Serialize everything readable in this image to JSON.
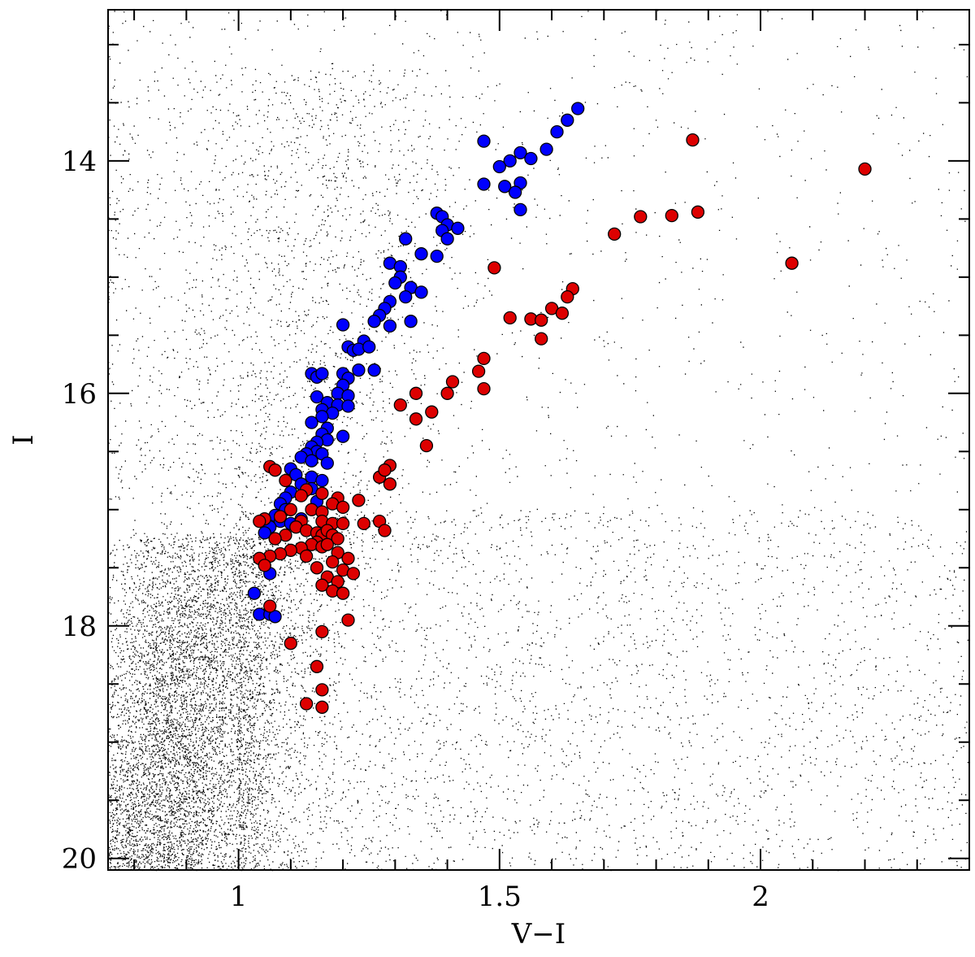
{
  "chart_data": {
    "type": "scatter",
    "title": "",
    "xlabel": "V−I",
    "ylabel": "I",
    "xlim": [
      0.75,
      2.4
    ],
    "ylim": [
      20.1,
      12.7
    ],
    "y_inverted": true,
    "grid": false,
    "legend": "none",
    "x_ticks": [
      {
        "value": 1,
        "label": "1"
      },
      {
        "value": 1.5,
        "label": "1.5"
      },
      {
        "value": 2,
        "label": "2"
      }
    ],
    "y_ticks": [
      {
        "value": 14,
        "label": "14"
      },
      {
        "value": 16,
        "label": "16"
      },
      {
        "value": 18,
        "label": "18"
      },
      {
        "value": 20,
        "label": "20"
      }
    ],
    "background_field": {
      "description_color": "#000000",
      "marker": "dot",
      "components": [
        {
          "name": "main-sequence",
          "x_center": 0.9,
          "x_spread": 0.1,
          "y_from": 17.2,
          "y_to": 20.1,
          "n": 7000
        },
        {
          "name": "red-giant-branch-field",
          "x_center": 1.1,
          "x_spread": 0.15,
          "y_from": 13.2,
          "y_to": 17.5,
          "n": 1800
        },
        {
          "name": "faint-red-field",
          "x_min": 1.0,
          "x_max": 2.4,
          "y_from": 17.0,
          "y_to": 20.1,
          "n": 3500
        },
        {
          "name": "bright-field",
          "x_min": 0.75,
          "x_max": 2.4,
          "y_from": 12.7,
          "y_to": 17.0,
          "n": 1200
        }
      ]
    },
    "series": [
      {
        "color": "#0000ff",
        "marker": "circle",
        "points": [
          [
            1.65,
            13.55
          ],
          [
            1.63,
            13.65
          ],
          [
            1.61,
            13.75
          ],
          [
            1.47,
            13.83
          ],
          [
            1.59,
            13.9
          ],
          [
            1.54,
            13.93
          ],
          [
            1.52,
            14.0
          ],
          [
            1.56,
            13.98
          ],
          [
            1.5,
            14.05
          ],
          [
            1.51,
            14.22
          ],
          [
            1.54,
            14.19
          ],
          [
            1.47,
            14.2
          ],
          [
            1.53,
            14.27
          ],
          [
            1.54,
            14.42
          ],
          [
            1.38,
            14.45
          ],
          [
            1.39,
            14.48
          ],
          [
            1.4,
            14.55
          ],
          [
            1.42,
            14.58
          ],
          [
            1.39,
            14.6
          ],
          [
            1.4,
            14.67
          ],
          [
            1.32,
            14.67
          ],
          [
            1.35,
            14.8
          ],
          [
            1.38,
            14.82
          ],
          [
            1.29,
            14.88
          ],
          [
            1.31,
            14.91
          ],
          [
            1.31,
            15.0
          ],
          [
            1.3,
            15.05
          ],
          [
            1.33,
            15.09
          ],
          [
            1.35,
            15.13
          ],
          [
            1.32,
            15.17
          ],
          [
            1.29,
            15.21
          ],
          [
            1.28,
            15.27
          ],
          [
            1.27,
            15.33
          ],
          [
            1.26,
            15.38
          ],
          [
            1.29,
            15.42
          ],
          [
            1.33,
            15.38
          ],
          [
            1.2,
            15.41
          ],
          [
            1.24,
            15.55
          ],
          [
            1.21,
            15.6
          ],
          [
            1.22,
            15.63
          ],
          [
            1.23,
            15.62
          ],
          [
            1.25,
            15.6
          ],
          [
            1.23,
            15.8
          ],
          [
            1.26,
            15.8
          ],
          [
            1.2,
            15.83
          ],
          [
            1.21,
            15.87
          ],
          [
            1.14,
            15.83
          ],
          [
            1.15,
            15.86
          ],
          [
            1.16,
            15.83
          ],
          [
            1.2,
            15.93
          ],
          [
            1.19,
            16.0
          ],
          [
            1.21,
            16.02
          ],
          [
            1.15,
            16.03
          ],
          [
            1.17,
            16.08
          ],
          [
            1.19,
            16.1
          ],
          [
            1.21,
            16.11
          ],
          [
            1.16,
            16.14
          ],
          [
            1.18,
            16.17
          ],
          [
            1.16,
            16.2
          ],
          [
            1.14,
            16.25
          ],
          [
            1.17,
            16.3
          ],
          [
            1.2,
            16.37
          ],
          [
            1.16,
            16.35
          ],
          [
            1.17,
            16.4
          ],
          [
            1.15,
            16.42
          ],
          [
            1.14,
            16.46
          ],
          [
            1.15,
            16.5
          ],
          [
            1.16,
            16.52
          ],
          [
            1.13,
            16.52
          ],
          [
            1.12,
            16.55
          ],
          [
            1.14,
            16.58
          ],
          [
            1.17,
            16.6
          ],
          [
            1.1,
            16.65
          ],
          [
            1.11,
            16.7
          ],
          [
            1.14,
            16.72
          ],
          [
            1.16,
            16.75
          ],
          [
            1.12,
            16.78
          ],
          [
            1.14,
            16.82
          ],
          [
            1.1,
            16.85
          ],
          [
            1.09,
            16.9
          ],
          [
            1.08,
            16.95
          ],
          [
            1.09,
            17.0
          ],
          [
            1.07,
            17.05
          ],
          [
            1.08,
            17.1
          ],
          [
            1.06,
            17.15
          ],
          [
            1.1,
            17.12
          ],
          [
            1.12,
            17.08
          ],
          [
            1.05,
            17.2
          ],
          [
            1.06,
            17.55
          ],
          [
            1.03,
            17.72
          ],
          [
            1.04,
            17.9
          ],
          [
            1.06,
            17.9
          ],
          [
            1.07,
            17.92
          ],
          [
            1.15,
            16.93
          ]
        ]
      },
      {
        "color": "#dd0000",
        "marker": "circle",
        "points": [
          [
            1.87,
            13.82
          ],
          [
            2.2,
            14.07
          ],
          [
            1.88,
            14.44
          ],
          [
            1.83,
            14.47
          ],
          [
            1.77,
            14.48
          ],
          [
            1.72,
            14.63
          ],
          [
            2.06,
            14.88
          ],
          [
            1.49,
            14.92
          ],
          [
            1.64,
            15.1
          ],
          [
            1.63,
            15.17
          ],
          [
            1.6,
            15.27
          ],
          [
            1.62,
            15.31
          ],
          [
            1.52,
            15.35
          ],
          [
            1.56,
            15.36
          ],
          [
            1.58,
            15.37
          ],
          [
            1.58,
            15.53
          ],
          [
            1.47,
            15.7
          ],
          [
            1.46,
            15.81
          ],
          [
            1.41,
            15.9
          ],
          [
            1.47,
            15.96
          ],
          [
            1.4,
            16.0
          ],
          [
            1.34,
            16.0
          ],
          [
            1.31,
            16.1
          ],
          [
            1.37,
            16.16
          ],
          [
            1.34,
            16.22
          ],
          [
            1.36,
            16.45
          ],
          [
            1.06,
            16.63
          ],
          [
            1.07,
            16.66
          ],
          [
            1.27,
            16.72
          ],
          [
            1.29,
            16.62
          ],
          [
            1.28,
            16.66
          ],
          [
            1.29,
            16.78
          ],
          [
            1.09,
            16.75
          ],
          [
            1.13,
            16.83
          ],
          [
            1.16,
            16.86
          ],
          [
            1.12,
            16.88
          ],
          [
            1.19,
            16.9
          ],
          [
            1.23,
            16.92
          ],
          [
            1.18,
            16.95
          ],
          [
            1.2,
            16.98
          ],
          [
            1.1,
            17.0
          ],
          [
            1.14,
            17.0
          ],
          [
            1.16,
            17.02
          ],
          [
            1.08,
            17.06
          ],
          [
            1.05,
            17.08
          ],
          [
            1.04,
            17.1
          ],
          [
            1.12,
            17.1
          ],
          [
            1.16,
            17.1
          ],
          [
            1.18,
            17.12
          ],
          [
            1.2,
            17.12
          ],
          [
            1.24,
            17.12
          ],
          [
            1.27,
            17.1
          ],
          [
            1.28,
            17.18
          ],
          [
            1.11,
            17.15
          ],
          [
            1.13,
            17.18
          ],
          [
            1.15,
            17.2
          ],
          [
            1.16,
            17.22
          ],
          [
            1.17,
            17.18
          ],
          [
            1.18,
            17.22
          ],
          [
            1.19,
            17.25
          ],
          [
            1.09,
            17.22
          ],
          [
            1.07,
            17.25
          ],
          [
            1.15,
            17.28
          ],
          [
            1.14,
            17.3
          ],
          [
            1.16,
            17.32
          ],
          [
            1.17,
            17.3
          ],
          [
            1.12,
            17.33
          ],
          [
            1.1,
            17.35
          ],
          [
            1.08,
            17.38
          ],
          [
            1.06,
            17.4
          ],
          [
            1.04,
            17.42
          ],
          [
            1.05,
            17.48
          ],
          [
            1.13,
            17.4
          ],
          [
            1.19,
            17.37
          ],
          [
            1.21,
            17.42
          ],
          [
            1.18,
            17.45
          ],
          [
            1.15,
            17.5
          ],
          [
            1.2,
            17.52
          ],
          [
            1.22,
            17.55
          ],
          [
            1.17,
            17.58
          ],
          [
            1.19,
            17.62
          ],
          [
            1.16,
            17.65
          ],
          [
            1.18,
            17.7
          ],
          [
            1.2,
            17.72
          ],
          [
            1.06,
            17.83
          ],
          [
            1.21,
            17.95
          ],
          [
            1.16,
            18.05
          ],
          [
            1.1,
            18.15
          ],
          [
            1.15,
            18.35
          ],
          [
            1.16,
            18.55
          ],
          [
            1.13,
            18.67
          ],
          [
            1.16,
            18.7
          ]
        ]
      }
    ]
  }
}
